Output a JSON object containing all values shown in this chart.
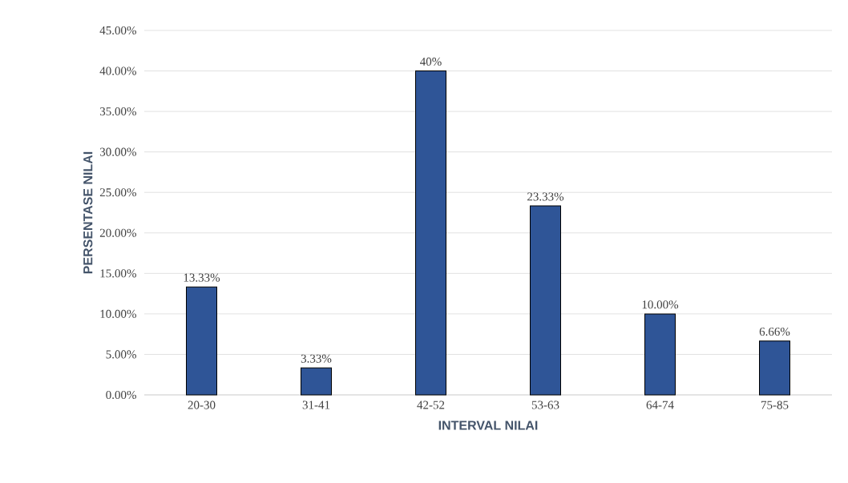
{
  "chart_data": {
    "type": "bar",
    "xlabel": "INTERVAL NILAI",
    "ylabel": "PERSENTASE NILAI",
    "categories": [
      "20-30",
      "31-41",
      "42-52",
      "53-63",
      "64-74",
      "75-85"
    ],
    "values": [
      13.33,
      3.33,
      40,
      23.33,
      10,
      6.66
    ],
    "value_labels": [
      "13.33%",
      "3.33%",
      "40%",
      "23.33%",
      "10.00%",
      "6.66%"
    ],
    "color": "#2f5597",
    "ylim": [
      0,
      45
    ],
    "yticks": [
      {
        "value": 0,
        "label": "0.00%"
      },
      {
        "value": 5,
        "label": "5.00%"
      },
      {
        "value": 10,
        "label": "10.00%"
      },
      {
        "value": 15,
        "label": "15.00%"
      },
      {
        "value": 20,
        "label": "20.00%"
      },
      {
        "value": 25,
        "label": "25.00%"
      },
      {
        "value": 30,
        "label": "30.00%"
      },
      {
        "value": 35,
        "label": "35.00%"
      },
      {
        "value": 40,
        "label": "40.00%"
      },
      {
        "value": 45,
        "label": "45.00%"
      }
    ],
    "grid": "y"
  }
}
